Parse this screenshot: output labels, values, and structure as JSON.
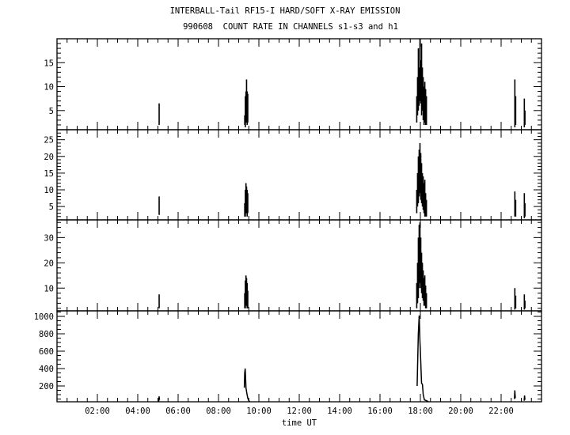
{
  "chart_data": {
    "type": "line",
    "title": "INTERBALL-Tail RF15-I HARD/SOFT X-RAY EMISSION",
    "subtitle": "990608  COUNT RATE IN CHANNELS s1-s3 and h1",
    "xlabel": "time UT",
    "xlim": [
      0,
      24
    ],
    "x_unit": "hours",
    "x_tick_labels": [
      "02:00",
      "04:00",
      "06:00",
      "08:00",
      "10:00",
      "12:00",
      "14:00",
      "16:00",
      "18:00",
      "20:00",
      "22:00"
    ],
    "x_tick_values": [
      2,
      4,
      6,
      8,
      10,
      12,
      14,
      16,
      18,
      20,
      22
    ],
    "panels": [
      {
        "name": "s1",
        "ylim": [
          1,
          20
        ],
        "y_ticks": [
          5,
          10,
          15
        ],
        "y_minor": 1,
        "style": "bars",
        "bars": [
          [
            5.06,
            2,
            6.5
          ],
          [
            9.3,
            2,
            4
          ],
          [
            9.33,
            1.5,
            8
          ],
          [
            9.36,
            2.5,
            9
          ],
          [
            9.39,
            3,
            11.5
          ],
          [
            9.42,
            2,
            9
          ],
          [
            9.45,
            2.5,
            8.5
          ],
          [
            17.82,
            2.5,
            8
          ],
          [
            17.86,
            4,
            12
          ],
          [
            17.9,
            5,
            18
          ],
          [
            17.94,
            6,
            14
          ],
          [
            17.98,
            7,
            19.9
          ],
          [
            18.02,
            6.5,
            15.5
          ],
          [
            18.06,
            4,
            19
          ],
          [
            18.1,
            5,
            14
          ],
          [
            18.14,
            3,
            12
          ],
          [
            18.18,
            2,
            10
          ],
          [
            18.22,
            2.5,
            11
          ],
          [
            18.26,
            2,
            9.5
          ],
          [
            18.3,
            2,
            8
          ],
          [
            22.68,
            1.5,
            11.5
          ],
          [
            22.72,
            2,
            8
          ],
          [
            23.15,
            1.5,
            7.5
          ],
          [
            23.18,
            2,
            5
          ]
        ]
      },
      {
        "name": "s2",
        "ylim": [
          1,
          28
        ],
        "y_ticks": [
          5,
          10,
          15,
          20,
          25
        ],
        "y_minor": 1,
        "style": "bars",
        "bars": [
          [
            5.06,
            2.5,
            8
          ],
          [
            9.3,
            2,
            6
          ],
          [
            9.33,
            2,
            10
          ],
          [
            9.36,
            3,
            12
          ],
          [
            9.39,
            3,
            11
          ],
          [
            9.42,
            2,
            10
          ],
          [
            9.45,
            3,
            9
          ],
          [
            17.82,
            3,
            10
          ],
          [
            17.86,
            5,
            15
          ],
          [
            17.9,
            6,
            20
          ],
          [
            17.94,
            8,
            22
          ],
          [
            17.98,
            9,
            24
          ],
          [
            18.02,
            7,
            21
          ],
          [
            18.06,
            6,
            18
          ],
          [
            18.1,
            5,
            15
          ],
          [
            18.14,
            4,
            14
          ],
          [
            18.18,
            3,
            12
          ],
          [
            18.22,
            2,
            13
          ],
          [
            18.26,
            2,
            9
          ],
          [
            18.3,
            2,
            7
          ],
          [
            22.68,
            2,
            9.5
          ],
          [
            22.72,
            2,
            7
          ],
          [
            23.15,
            1.5,
            9
          ],
          [
            23.18,
            2,
            6
          ]
        ]
      },
      {
        "name": "s3",
        "ylim": [
          1,
          37
        ],
        "y_ticks": [
          10,
          20,
          30
        ],
        "y_minor": 2,
        "style": "bars",
        "bars": [
          [
            5.06,
            2,
            7.5
          ],
          [
            9.3,
            2,
            8
          ],
          [
            9.33,
            2,
            13
          ],
          [
            9.36,
            3,
            15
          ],
          [
            9.39,
            3,
            14
          ],
          [
            9.42,
            2,
            12
          ],
          [
            9.45,
            2,
            9
          ],
          [
            17.82,
            2,
            12
          ],
          [
            17.86,
            4,
            20
          ],
          [
            17.9,
            6,
            30
          ],
          [
            17.94,
            10,
            35
          ],
          [
            17.98,
            12,
            36
          ],
          [
            18.02,
            10,
            30
          ],
          [
            18.06,
            8,
            24
          ],
          [
            18.1,
            6,
            20
          ],
          [
            18.14,
            5,
            17
          ],
          [
            18.18,
            3,
            14
          ],
          [
            18.22,
            3,
            15
          ],
          [
            18.26,
            2,
            11
          ],
          [
            18.3,
            2,
            8
          ],
          [
            22.68,
            1.5,
            10
          ],
          [
            22.72,
            2,
            7
          ],
          [
            23.15,
            1.5,
            7.5
          ],
          [
            23.18,
            2,
            5
          ]
        ]
      },
      {
        "name": "h1",
        "ylim": [
          18,
          1064
        ],
        "y_ticks": [
          200,
          400,
          600,
          800,
          1000
        ],
        "y_minor": 50,
        "style": "line",
        "segments": [
          [
            [
              5.04,
              20
            ],
            [
              5.06,
              80
            ],
            [
              5.08,
              40
            ]
          ],
          [
            [
              9.28,
              180
            ],
            [
              9.3,
              350
            ],
            [
              9.32,
              400
            ],
            [
              9.34,
              300
            ],
            [
              9.36,
              180
            ],
            [
              9.4,
              120
            ],
            [
              9.45,
              60
            ],
            [
              9.5,
              30
            ],
            [
              9.55,
              20
            ]
          ],
          [
            [
              17.84,
              200
            ],
            [
              17.86,
              400
            ],
            [
              17.9,
              800
            ],
            [
              17.94,
              1010
            ],
            [
              17.98,
              700
            ],
            [
              18.0,
              600
            ],
            [
              18.03,
              400
            ],
            [
              18.06,
              230
            ],
            [
              18.1,
              220
            ],
            [
              18.14,
              100
            ],
            [
              18.2,
              40
            ],
            [
              18.3,
              30
            ],
            [
              18.4,
              20
            ]
          ],
          [
            [
              22.66,
              50
            ],
            [
              22.68,
              150
            ],
            [
              22.7,
              60
            ]
          ],
          [
            [
              23.14,
              30
            ],
            [
              23.16,
              90
            ],
            [
              23.18,
              40
            ]
          ]
        ]
      }
    ]
  }
}
